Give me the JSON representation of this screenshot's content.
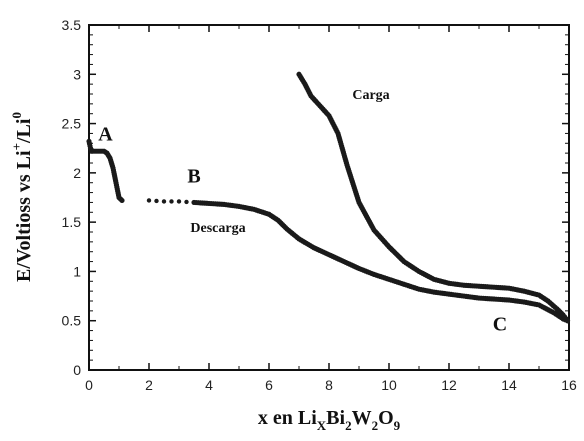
{
  "chart_data": {
    "type": "scatter",
    "title": "",
    "xlabel": {
      "parts": [
        {
          "text": "x en Li",
          "shift": "none"
        },
        {
          "text": "X",
          "shift": "sub"
        },
        {
          "text": "Bi",
          "shift": "none"
        },
        {
          "text": "2",
          "shift": "sub"
        },
        {
          "text": "W",
          "shift": "none"
        },
        {
          "text": "2",
          "shift": "sub"
        },
        {
          "text": "O",
          "shift": "none"
        },
        {
          "text": "9",
          "shift": "sub"
        }
      ]
    },
    "ylabel": {
      "parts": [
        {
          "text": "E/Voltioss vs Li",
          "shift": "none"
        },
        {
          "text": "+",
          "shift": "super"
        },
        {
          "text": "/Li",
          "shift": "none"
        },
        {
          "text": "0",
          "shift": "super"
        }
      ]
    },
    "xlim": [
      0,
      16
    ],
    "ylim": [
      0,
      3.5
    ],
    "xticks": [
      "0",
      "2",
      "4",
      "6",
      "8",
      "10",
      "12",
      "14",
      "16"
    ],
    "yticks": [
      "0",
      "0.5",
      "1",
      "1.5",
      "2",
      "2.5",
      "3",
      "3.5"
    ],
    "grid": false,
    "marker_color": "#1a1a1a",
    "annotations": [
      {
        "text": "A",
        "x": 0.55,
        "y": 2.33,
        "size": "big"
      },
      {
        "text": "B",
        "x": 3.5,
        "y": 1.9,
        "size": "big"
      },
      {
        "text": "C",
        "x": 13.7,
        "y": 0.4,
        "size": "big"
      },
      {
        "text": "Carga",
        "x": 9.4,
        "y": 2.75,
        "size": "small"
      },
      {
        "text": "Descarga",
        "x": 4.3,
        "y": 1.4,
        "size": "small"
      }
    ],
    "series": [
      {
        "name": "Descarga",
        "style": "dense",
        "points": [
          [
            0.0,
            2.32
          ],
          [
            0.05,
            2.25
          ],
          [
            0.1,
            2.22
          ],
          [
            0.3,
            2.22
          ],
          [
            0.5,
            2.22
          ],
          [
            0.6,
            2.2
          ],
          [
            0.7,
            2.15
          ],
          [
            0.8,
            2.05
          ],
          [
            0.9,
            1.9
          ],
          [
            1.0,
            1.75
          ],
          [
            1.1,
            1.72
          ]
        ]
      },
      {
        "name": "Descarga",
        "style": "sparse",
        "points": [
          [
            2.0,
            1.72
          ],
          [
            2.5,
            1.71
          ],
          [
            3.0,
            1.71
          ],
          [
            3.5,
            1.7
          ]
        ]
      },
      {
        "name": "Descarga",
        "style": "dense",
        "points": [
          [
            3.5,
            1.7
          ],
          [
            4.0,
            1.69
          ],
          [
            4.5,
            1.68
          ],
          [
            5.0,
            1.66
          ],
          [
            5.5,
            1.63
          ],
          [
            6.0,
            1.58
          ],
          [
            6.3,
            1.52
          ],
          [
            6.6,
            1.43
          ],
          [
            7.0,
            1.33
          ],
          [
            7.5,
            1.24
          ],
          [
            8.0,
            1.17
          ],
          [
            8.5,
            1.1
          ],
          [
            9.0,
            1.03
          ],
          [
            9.5,
            0.97
          ],
          [
            10.0,
            0.92
          ],
          [
            10.5,
            0.87
          ],
          [
            11.0,
            0.82
          ],
          [
            11.5,
            0.79
          ],
          [
            12.0,
            0.77
          ],
          [
            12.5,
            0.75
          ],
          [
            13.0,
            0.73
          ],
          [
            13.5,
            0.72
          ],
          [
            14.0,
            0.71
          ],
          [
            14.5,
            0.69
          ],
          [
            15.0,
            0.66
          ],
          [
            15.5,
            0.58
          ],
          [
            15.8,
            0.52
          ],
          [
            15.95,
            0.5
          ]
        ]
      },
      {
        "name": "Carga",
        "style": "dense",
        "points": [
          [
            15.95,
            0.5
          ],
          [
            15.8,
            0.56
          ],
          [
            15.6,
            0.62
          ],
          [
            15.3,
            0.7
          ],
          [
            15.0,
            0.76
          ],
          [
            14.5,
            0.8
          ],
          [
            14.0,
            0.83
          ],
          [
            13.5,
            0.84
          ],
          [
            13.0,
            0.85
          ],
          [
            12.5,
            0.86
          ],
          [
            12.0,
            0.88
          ],
          [
            11.5,
            0.92
          ],
          [
            11.0,
            1.0
          ],
          [
            10.5,
            1.1
          ],
          [
            10.0,
            1.25
          ],
          [
            9.5,
            1.42
          ],
          [
            9.0,
            1.7
          ],
          [
            8.6,
            2.08
          ],
          [
            8.3,
            2.4
          ],
          [
            8.0,
            2.58
          ],
          [
            7.7,
            2.68
          ],
          [
            7.4,
            2.78
          ],
          [
            7.2,
            2.9
          ],
          [
            7.0,
            3.0
          ]
        ]
      }
    ]
  }
}
